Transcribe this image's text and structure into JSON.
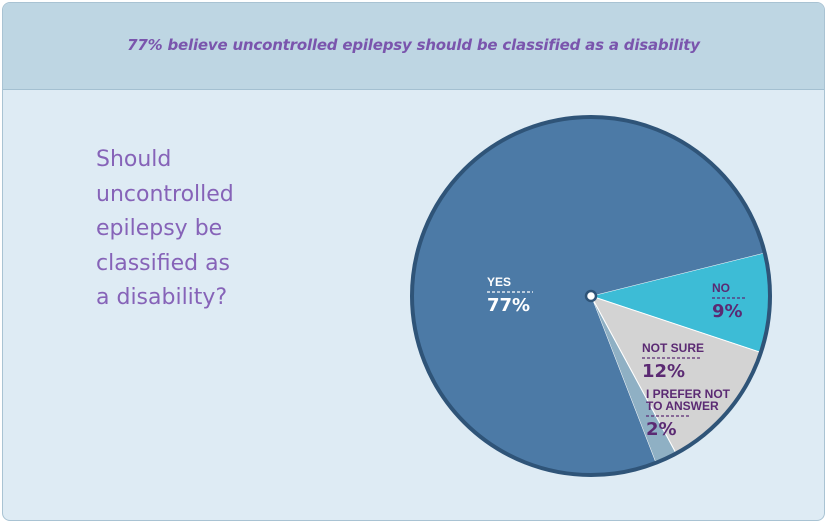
{
  "header": {
    "title": "77% believe uncontrolled epilepsy should be classified as a disability"
  },
  "question": {
    "lines": [
      "Should",
      "uncontrolled",
      "epilepsy be",
      "classified as",
      "a disability?"
    ]
  },
  "colors": {
    "yes": "#4c7aa6",
    "no": "#3dbcd6",
    "not_sure": "#d3d3d3",
    "prefer_not": "#8fb0c4",
    "outline": "#2f5478",
    "label_dark": "#5b2a73",
    "label_light": "#ffffff"
  },
  "chart_data": {
    "type": "pie",
    "title": "Should uncontrolled epilepsy be classified as a disability?",
    "slices": [
      {
        "label": "NO",
        "value": 9,
        "display": "9%"
      },
      {
        "label": "NOT SURE",
        "value": 12,
        "display": "12%"
      },
      {
        "label": "I PREFER NOT TO ANSWER",
        "label_lines": [
          "I PREFER NOT",
          "TO ANSWER"
        ],
        "value": 2,
        "display": "2%"
      },
      {
        "label": "YES",
        "value": 77,
        "display": "77%"
      }
    ]
  }
}
